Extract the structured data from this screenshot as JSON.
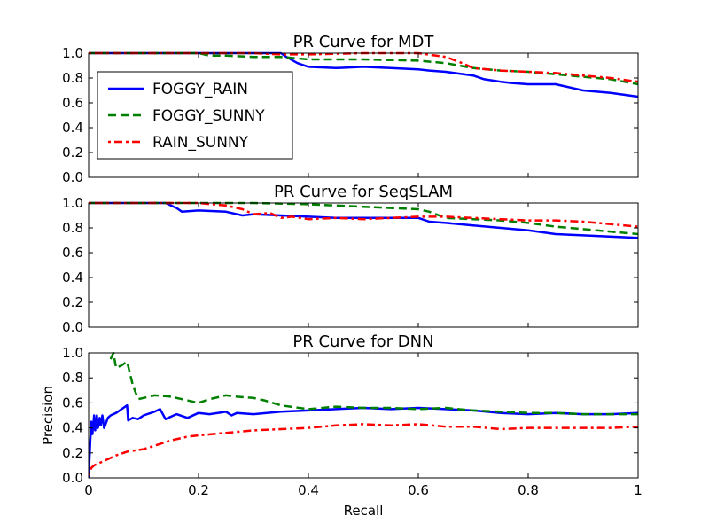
{
  "chart_data": [
    {
      "type": "line",
      "title": "PR Curve for MDT",
      "xlabel": "",
      "ylabel": "",
      "xlim": [
        0,
        1
      ],
      "ylim": [
        0,
        1
      ],
      "xticks_shown": false,
      "legend": {
        "placement": "upper-left"
      },
      "series": [
        {
          "name": "FOGGY_RAIN",
          "color": "#0000ff",
          "style": "solid",
          "x": [
            0,
            0.35,
            0.36,
            0.38,
            0.4,
            0.45,
            0.5,
            0.55,
            0.6,
            0.62,
            0.65,
            0.7,
            0.72,
            0.75,
            0.77,
            0.8,
            0.85,
            0.88,
            0.9,
            0.95,
            1.0
          ],
          "y": [
            1.0,
            1.0,
            0.97,
            0.92,
            0.89,
            0.88,
            0.89,
            0.88,
            0.87,
            0.86,
            0.85,
            0.82,
            0.79,
            0.77,
            0.76,
            0.75,
            0.75,
            0.72,
            0.7,
            0.68,
            0.65
          ]
        },
        {
          "name": "FOGGY_SUNNY",
          "color": "#008000",
          "style": "dashed",
          "x": [
            0,
            0.2,
            0.22,
            0.25,
            0.3,
            0.35,
            0.4,
            0.5,
            0.6,
            0.65,
            0.7,
            0.75,
            0.8,
            0.85,
            0.9,
            0.95,
            1.0
          ],
          "y": [
            1.0,
            1.0,
            0.98,
            0.98,
            0.97,
            0.97,
            0.95,
            0.95,
            0.94,
            0.92,
            0.88,
            0.86,
            0.85,
            0.83,
            0.81,
            0.79,
            0.75
          ]
        },
        {
          "name": "RAIN_SUNNY",
          "color": "#ff0000",
          "style": "dash-dot",
          "x": [
            0,
            0.3,
            0.35,
            0.4,
            0.5,
            0.6,
            0.65,
            0.68,
            0.7,
            0.75,
            0.8,
            0.85,
            0.9,
            0.95,
            1.0
          ],
          "y": [
            1.0,
            1.0,
            0.99,
            0.99,
            1.0,
            1.0,
            0.97,
            0.92,
            0.88,
            0.86,
            0.85,
            0.84,
            0.82,
            0.8,
            0.77
          ]
        }
      ]
    },
    {
      "type": "line",
      "title": "PR Curve for SeqSLAM",
      "xlabel": "",
      "ylabel": "",
      "xlim": [
        0,
        1
      ],
      "ylim": [
        0,
        1
      ],
      "xticks_shown": false,
      "series": [
        {
          "name": "FOGGY_RAIN",
          "color": "#0000ff",
          "style": "solid",
          "x": [
            0,
            0.14,
            0.16,
            0.17,
            0.2,
            0.25,
            0.28,
            0.3,
            0.35,
            0.4,
            0.45,
            0.5,
            0.55,
            0.6,
            0.62,
            0.65,
            0.7,
            0.75,
            0.8,
            0.85,
            0.9,
            1.0
          ],
          "y": [
            1.0,
            1.0,
            0.96,
            0.93,
            0.94,
            0.93,
            0.9,
            0.91,
            0.9,
            0.89,
            0.88,
            0.88,
            0.88,
            0.88,
            0.85,
            0.84,
            0.82,
            0.8,
            0.78,
            0.75,
            0.74,
            0.72
          ]
        },
        {
          "name": "FOGGY_SUNNY",
          "color": "#008000",
          "style": "dashed",
          "x": [
            0,
            0.3,
            0.4,
            0.45,
            0.5,
            0.55,
            0.6,
            0.62,
            0.65,
            0.7,
            0.75,
            0.8,
            0.85,
            0.9,
            0.95,
            1.0
          ],
          "y": [
            1.0,
            1.0,
            0.99,
            0.98,
            0.97,
            0.96,
            0.95,
            0.93,
            0.88,
            0.87,
            0.86,
            0.84,
            0.81,
            0.79,
            0.77,
            0.75
          ]
        },
        {
          "name": "RAIN_SUNNY",
          "color": "#ff0000",
          "style": "dash-dot",
          "x": [
            0,
            0.2,
            0.25,
            0.28,
            0.3,
            0.33,
            0.35,
            0.37,
            0.4,
            0.45,
            0.5,
            0.55,
            0.6,
            0.65,
            0.7,
            0.75,
            0.8,
            0.85,
            0.9,
            0.95,
            1.0
          ],
          "y": [
            1.0,
            1.0,
            0.98,
            0.95,
            0.91,
            0.92,
            0.88,
            0.89,
            0.87,
            0.88,
            0.87,
            0.88,
            0.89,
            0.89,
            0.88,
            0.87,
            0.86,
            0.86,
            0.85,
            0.83,
            0.81
          ]
        }
      ]
    },
    {
      "type": "line",
      "title": "PR Curve for DNN",
      "xlabel": "Recall",
      "ylabel": "Precision",
      "xlim": [
        0,
        1
      ],
      "ylim": [
        0,
        1
      ],
      "xticks": [
        "0",
        "0.2",
        "0.4",
        "0.6",
        "0.8",
        "1"
      ],
      "series": [
        {
          "name": "FOGGY_RAIN",
          "color": "#0000ff",
          "style": "solid",
          "x": [
            0,
            0.003,
            0.005,
            0.007,
            0.01,
            0.012,
            0.015,
            0.017,
            0.02,
            0.022,
            0.025,
            0.028,
            0.03,
            0.035,
            0.04,
            0.05,
            0.06,
            0.07,
            0.072,
            0.08,
            0.09,
            0.1,
            0.12,
            0.13,
            0.14,
            0.15,
            0.16,
            0.18,
            0.2,
            0.22,
            0.25,
            0.26,
            0.27,
            0.3,
            0.35,
            0.4,
            0.45,
            0.5,
            0.55,
            0.6,
            0.65,
            0.7,
            0.75,
            0.8,
            0.85,
            0.9,
            0.95,
            1.0
          ],
          "y": [
            0.0,
            0.3,
            0.45,
            0.35,
            0.5,
            0.38,
            0.5,
            0.4,
            0.48,
            0.42,
            0.5,
            0.4,
            0.42,
            0.48,
            0.5,
            0.52,
            0.55,
            0.58,
            0.46,
            0.48,
            0.47,
            0.5,
            0.53,
            0.55,
            0.47,
            0.49,
            0.51,
            0.48,
            0.52,
            0.51,
            0.53,
            0.5,
            0.52,
            0.51,
            0.53,
            0.54,
            0.55,
            0.56,
            0.55,
            0.56,
            0.55,
            0.54,
            0.52,
            0.51,
            0.52,
            0.51,
            0.51,
            0.52
          ]
        },
        {
          "name": "FOGGY_SUNNY",
          "color": "#008000",
          "style": "dashed",
          "x": [
            0.04,
            0.045,
            0.05,
            0.06,
            0.07,
            0.08,
            0.09,
            0.1,
            0.12,
            0.15,
            0.2,
            0.22,
            0.25,
            0.27,
            0.3,
            0.32,
            0.35,
            0.4,
            0.45,
            0.5,
            0.55,
            0.6,
            0.65,
            0.7,
            0.75,
            0.8,
            0.85,
            0.9,
            0.95,
            1.0
          ],
          "y": [
            0.95,
            1.0,
            0.88,
            0.9,
            0.93,
            0.75,
            0.63,
            0.64,
            0.66,
            0.65,
            0.6,
            0.63,
            0.66,
            0.65,
            0.64,
            0.62,
            0.58,
            0.55,
            0.57,
            0.56,
            0.56,
            0.55,
            0.56,
            0.54,
            0.53,
            0.52,
            0.52,
            0.51,
            0.51,
            0.51
          ]
        },
        {
          "name": "RAIN_SUNNY",
          "color": "#ff0000",
          "style": "dash-dot",
          "x": [
            0.0,
            0.005,
            0.01,
            0.02,
            0.05,
            0.07,
            0.1,
            0.15,
            0.18,
            0.2,
            0.25,
            0.3,
            0.35,
            0.4,
            0.45,
            0.5,
            0.55,
            0.6,
            0.65,
            0.7,
            0.75,
            0.8,
            0.85,
            0.9,
            0.95,
            1.0
          ],
          "y": [
            0.02,
            0.08,
            0.1,
            0.12,
            0.18,
            0.21,
            0.23,
            0.3,
            0.33,
            0.34,
            0.36,
            0.38,
            0.39,
            0.4,
            0.42,
            0.43,
            0.42,
            0.43,
            0.41,
            0.41,
            0.39,
            0.4,
            0.4,
            0.4,
            0.4,
            0.41
          ]
        }
      ]
    }
  ],
  "yticks": [
    "0.0",
    "0.2",
    "0.4",
    "0.6",
    "0.8",
    "1.0"
  ],
  "legend_entries": [
    "FOGGY_RAIN",
    "FOGGY_SUNNY",
    "RAIN_SUNNY"
  ]
}
